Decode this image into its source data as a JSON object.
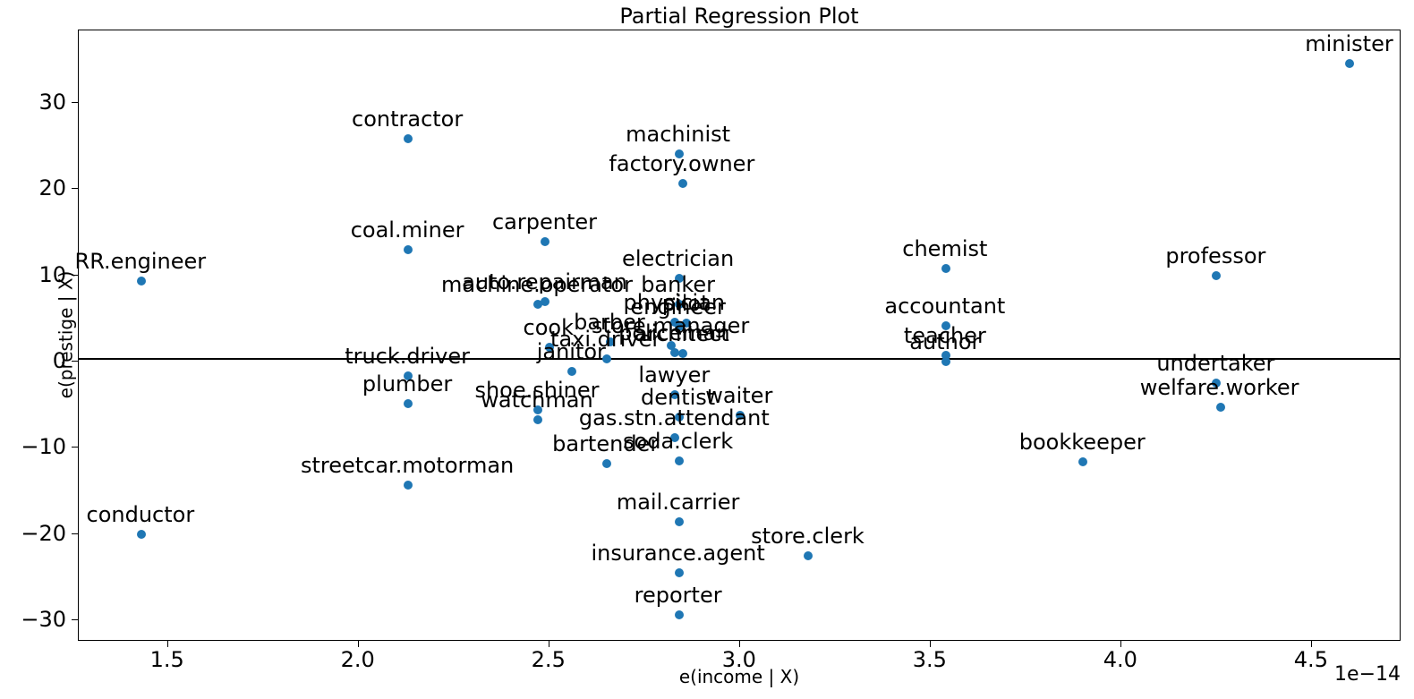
{
  "chart_data": {
    "type": "scatter",
    "title": "Partial Regression Plot",
    "xlabel": "e(income | X)",
    "ylabel": "e(prestige | X)",
    "x_offset_text": "1e−14",
    "xlim": [
      1.266,
      4.735
    ],
    "ylim": [
      -32.5,
      38.4
    ],
    "xticks": [
      1.5,
      2.0,
      2.5,
      3.0,
      3.5,
      4.0,
      4.5
    ],
    "xtick_labels": [
      "1.5",
      "2.0",
      "2.5",
      "3.0",
      "3.5",
      "4.0",
      "4.5"
    ],
    "yticks": [
      30,
      20,
      10,
      0,
      -10,
      -20,
      -30
    ],
    "ytick_labels": [
      "30",
      "20",
      "10",
      "0",
      "−10",
      "−20",
      "−30"
    ],
    "grid": false,
    "legend": null,
    "point_color": "#1f77b4",
    "line_color": "#000000",
    "regression_line": {
      "y": 0.45
    },
    "points": [
      {
        "label": "minister",
        "x": 4.6,
        "y": 34.6
      },
      {
        "label": "contractor",
        "x": 2.13,
        "y": 25.8
      },
      {
        "label": "machinist",
        "x": 2.84,
        "y": 24.1
      },
      {
        "label": "factory.owner",
        "x": 2.85,
        "y": 20.6
      },
      {
        "label": "carpenter",
        "x": 2.49,
        "y": 13.9
      },
      {
        "label": "coal.miner",
        "x": 2.13,
        "y": 13.0
      },
      {
        "label": "chemist",
        "x": 3.54,
        "y": 10.8
      },
      {
        "label": "professor",
        "x": 4.25,
        "y": 10.0
      },
      {
        "label": "electrician",
        "x": 2.84,
        "y": 9.6
      },
      {
        "label": "RR.engineer",
        "x": 1.43,
        "y": 9.3
      },
      {
        "label": "auto.repairman",
        "x": 2.49,
        "y": 6.9
      },
      {
        "label": "banker",
        "x": 2.84,
        "y": 6.6
      },
      {
        "label": "machine.operator",
        "x": 2.47,
        "y": 6.6
      },
      {
        "label": "physician",
        "x": 2.83,
        "y": 4.6
      },
      {
        "label": "pilot",
        "x": 2.86,
        "y": 4.5
      },
      {
        "label": "accountant",
        "x": 3.54,
        "y": 4.1
      },
      {
        "label": "engineer",
        "x": 2.84,
        "y": 4.0
      },
      {
        "label": "barber",
        "x": 2.66,
        "y": 2.3
      },
      {
        "label": "store.manager",
        "x": 2.82,
        "y": 1.9
      },
      {
        "label": "cook",
        "x": 2.5,
        "y": 1.7
      },
      {
        "label": "policeman",
        "x": 2.83,
        "y": 1.0
      },
      {
        "label": "architect",
        "x": 2.85,
        "y": 0.95
      },
      {
        "label": "teacher",
        "x": 3.54,
        "y": 0.7
      },
      {
        "label": "taxi.driver",
        "x": 2.65,
        "y": 0.3
      },
      {
        "label": "author",
        "x": 3.54,
        "y": 0.0
      },
      {
        "label": "janitor",
        "x": 2.56,
        "y": -1.1
      },
      {
        "label": "truck.driver",
        "x": 2.13,
        "y": -1.7
      },
      {
        "label": "undertaker",
        "x": 4.25,
        "y": -2.5
      },
      {
        "label": "lawyer",
        "x": 2.83,
        "y": -3.9
      },
      {
        "label": "plumber",
        "x": 2.13,
        "y": -4.9
      },
      {
        "label": "welfare.worker",
        "x": 4.26,
        "y": -5.3
      },
      {
        "label": "shoe.shiner",
        "x": 2.47,
        "y": -5.6
      },
      {
        "label": "waiter",
        "x": 3.0,
        "y": -6.2
      },
      {
        "label": "dentist",
        "x": 2.84,
        "y": -6.4
      },
      {
        "label": "watchman",
        "x": 2.47,
        "y": -6.8
      },
      {
        "label": "gas.stn.attendant",
        "x": 2.83,
        "y": -8.8
      },
      {
        "label": "soda.clerk",
        "x": 2.84,
        "y": -11.5
      },
      {
        "label": "bookkeeper",
        "x": 3.9,
        "y": -11.6
      },
      {
        "label": "bartender",
        "x": 2.65,
        "y": -11.8
      },
      {
        "label": "streetcar.motorman",
        "x": 2.13,
        "y": -14.3
      },
      {
        "label": "mail.carrier",
        "x": 2.84,
        "y": -18.6
      },
      {
        "label": "conductor",
        "x": 1.43,
        "y": -20.0
      },
      {
        "label": "store.clerk",
        "x": 3.18,
        "y": -22.5
      },
      {
        "label": "insurance.agent",
        "x": 2.84,
        "y": -24.5
      },
      {
        "label": "reporter",
        "x": 2.84,
        "y": -29.4
      }
    ]
  }
}
